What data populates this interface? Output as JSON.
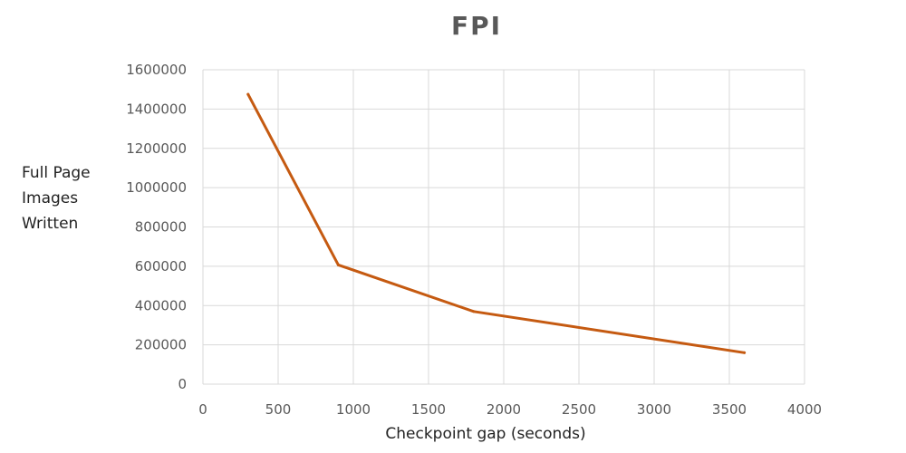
{
  "chart_data": {
    "type": "line",
    "title": "FPI",
    "xlabel": "Checkpoint gap (seconds)",
    "ylabel_lines": [
      "Full Page",
      "Images",
      "Written"
    ],
    "xlim": [
      0,
      4000
    ],
    "ylim": [
      0,
      1600000
    ],
    "xticks": [
      0,
      500,
      1000,
      1500,
      2000,
      2500,
      3000,
      3500,
      4000
    ],
    "yticks": [
      0,
      200000,
      400000,
      600000,
      800000,
      1000000,
      1200000,
      1400000,
      1600000
    ],
    "grid": true,
    "legend": "none",
    "series": [
      {
        "color": "#c55a11",
        "points": [
          {
            "x": 300,
            "y": 1475000
          },
          {
            "x": 900,
            "y": 607000
          },
          {
            "x": 1800,
            "y": 370000
          },
          {
            "x": 3600,
            "y": 160000
          }
        ]
      }
    ]
  }
}
